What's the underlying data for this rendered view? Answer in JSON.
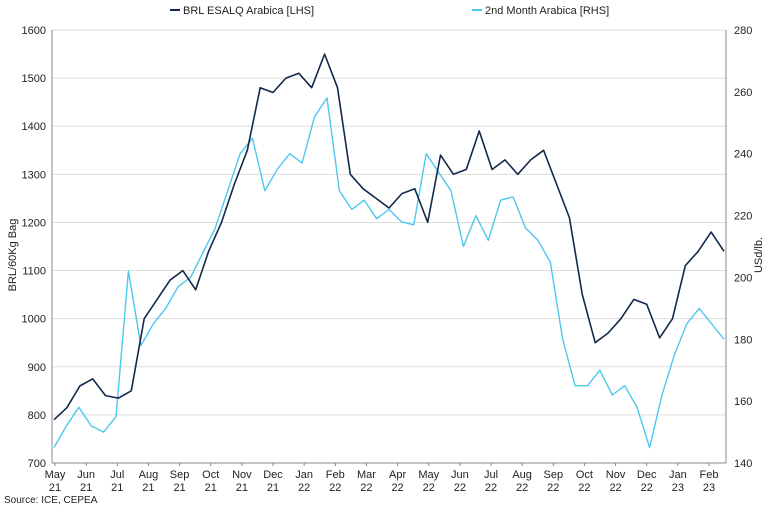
{
  "chart_data": {
    "type": "line",
    "source": "Source: ICE, CEPEA",
    "ylabel_left": "BRL/60Kg Bag",
    "ylabel_right": "USd/lb.",
    "ylim_left": [
      700,
      1600
    ],
    "ylim_right": [
      140,
      280
    ],
    "yticks_left": [
      700,
      800,
      900,
      1000,
      1100,
      1200,
      1300,
      1400,
      1500,
      1600
    ],
    "yticks_right": [
      140,
      160,
      180,
      200,
      220,
      240,
      260,
      280
    ],
    "x_ticks": [
      {
        "m": "May",
        "y": "21"
      },
      {
        "m": "Jun",
        "y": "21"
      },
      {
        "m": "Jul",
        "y": "21"
      },
      {
        "m": "Aug",
        "y": "21"
      },
      {
        "m": "Sep",
        "y": "21"
      },
      {
        "m": "Oct",
        "y": "21"
      },
      {
        "m": "Nov",
        "y": "21"
      },
      {
        "m": "Dec",
        "y": "21"
      },
      {
        "m": "Jan",
        "y": "22"
      },
      {
        "m": "Feb",
        "y": "22"
      },
      {
        "m": "Mar",
        "y": "22"
      },
      {
        "m": "Apr",
        "y": "22"
      },
      {
        "m": "May",
        "y": "22"
      },
      {
        "m": "Jun",
        "y": "22"
      },
      {
        "m": "Jul",
        "y": "22"
      },
      {
        "m": "Aug",
        "y": "22"
      },
      {
        "m": "Sep",
        "y": "22"
      },
      {
        "m": "Oct",
        "y": "22"
      },
      {
        "m": "Nov",
        "y": "22"
      },
      {
        "m": "Dec",
        "y": "22"
      },
      {
        "m": "Jan",
        "y": "23"
      },
      {
        "m": "Feb",
        "y": "23"
      }
    ],
    "grid": "horizontal",
    "legend_position": "top",
    "series": [
      {
        "name": "BRL ESALQ Arabica [LHS]",
        "axis": "left",
        "color": "#13294b",
        "values": [
          790,
          815,
          860,
          875,
          840,
          835,
          850,
          1000,
          1040,
          1080,
          1100,
          1060,
          1140,
          1200,
          1280,
          1350,
          1480,
          1470,
          1500,
          1510,
          1480,
          1550,
          1480,
          1300,
          1270,
          1250,
          1230,
          1260,
          1270,
          1200,
          1340,
          1300,
          1310,
          1390,
          1310,
          1330,
          1300,
          1330,
          1350,
          1280,
          1210,
          1050,
          950,
          970,
          1000,
          1040,
          1030,
          960,
          1000,
          1110,
          1140,
          1180,
          1140
        ]
      },
      {
        "name": "2nd Month Arabica [RHS]",
        "axis": "right",
        "color": "#4dc8ee",
        "values": [
          145,
          152,
          158,
          152,
          150,
          155,
          202,
          178,
          185,
          190,
          197,
          200,
          208,
          216,
          228,
          240,
          245,
          228,
          235,
          240,
          237,
          252,
          258,
          228,
          222,
          225,
          219,
          222,
          218,
          217,
          240,
          234,
          228,
          210,
          220,
          212,
          225,
          226,
          216,
          212,
          205,
          180,
          165,
          165,
          170,
          162,
          165,
          158,
          145,
          162,
          175,
          185,
          190,
          185,
          180
        ]
      }
    ]
  }
}
